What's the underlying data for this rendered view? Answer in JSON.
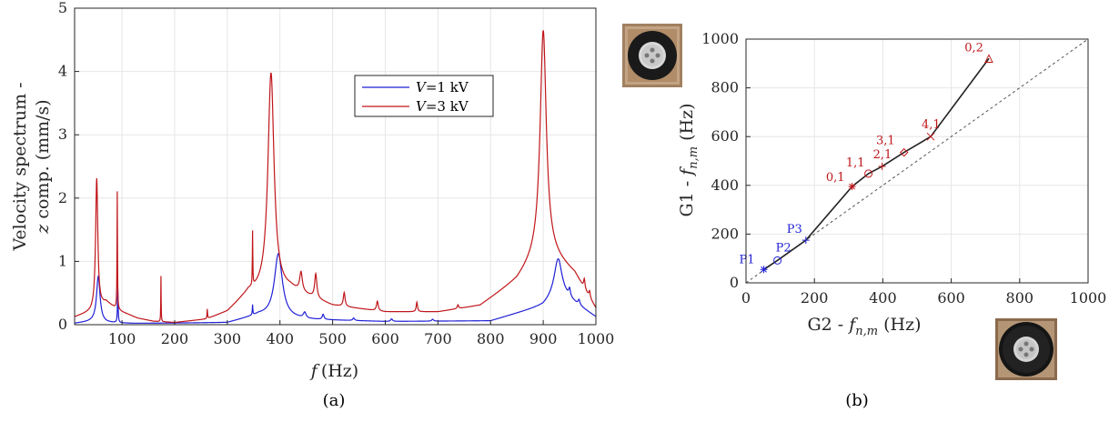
{
  "captions": [
    "(a)",
    "(b)"
  ],
  "chart_data": [
    {
      "type": "line",
      "xlabel_var": "f",
      "xlabel_unit": "(Hz)",
      "ylabel_line1": "Velocity spectrum -",
      "ylabel_var": "z",
      "ylabel_line2_rest": " comp. (mm/s)",
      "xlim": [
        10,
        1000
      ],
      "ylim": [
        0,
        5
      ],
      "xticks": [
        100,
        200,
        300,
        400,
        500,
        600,
        700,
        800,
        900,
        1000
      ],
      "yticks": [
        0,
        1,
        2,
        3,
        4,
        5
      ],
      "grid": true,
      "legend_position": "upper-center",
      "series": [
        {
          "name": "V=1 kV",
          "legend_var": "V",
          "legend_rest": "=1 kV",
          "color": "#1f1fd6",
          "baseline": [
            [
              10,
              0.02
            ],
            [
              45,
              0.05
            ],
            [
              70,
              0.03
            ],
            [
              120,
              0.02
            ],
            [
              300,
              0.03
            ],
            [
              360,
              0.15
            ],
            [
              450,
              0.08
            ],
            [
              600,
              0.05
            ],
            [
              800,
              0.06
            ],
            [
              900,
              0.3
            ],
            [
              930,
              0.5
            ],
            [
              1000,
              0.12
            ]
          ],
          "peaks": [
            {
              "f": 55,
              "a": 0.72,
              "w": 4
            },
            {
              "f": 92,
              "a": 0.55,
              "w": 0.7
            },
            {
              "f": 348,
              "a": 0.16,
              "w": 0.6
            },
            {
              "f": 397,
              "a": 1.0,
              "w": 9
            },
            {
              "f": 447,
              "a": 0.09,
              "w": 3
            },
            {
              "f": 482,
              "a": 0.08,
              "w": 2
            },
            {
              "f": 540,
              "a": 0.04,
              "w": 2
            },
            {
              "f": 612,
              "a": 0.04,
              "w": 2
            },
            {
              "f": 690,
              "a": 0.03,
              "w": 2
            },
            {
              "f": 928,
              "a": 0.55,
              "w": 9
            },
            {
              "f": 950,
              "a": 0.12,
              "w": 2
            },
            {
              "f": 968,
              "a": 0.08,
              "w": 2
            }
          ]
        },
        {
          "name": "V=3 kV",
          "legend_var": "V",
          "legend_rest": "=3 kV",
          "color": "#c0161a",
          "baseline": [
            [
              10,
              0.12
            ],
            [
              40,
              0.2
            ],
            [
              70,
              0.35
            ],
            [
              100,
              0.2
            ],
            [
              130,
              0.1
            ],
            [
              160,
              0.05
            ],
            [
              200,
              0.03
            ],
            [
              260,
              0.08
            ],
            [
              300,
              0.2
            ],
            [
              340,
              0.5
            ],
            [
              420,
              0.55
            ],
            [
              500,
              0.3
            ],
            [
              600,
              0.2
            ],
            [
              700,
              0.2
            ],
            [
              780,
              0.3
            ],
            [
              850,
              0.7
            ],
            [
              900,
              1.2
            ],
            [
              960,
              0.8
            ],
            [
              1000,
              0.25
            ]
          ],
          "peaks": [
            {
              "f": 52,
              "a": 2.05,
              "w": 2.5
            },
            {
              "f": 91,
              "a": 1.85,
              "w": 0.5
            },
            {
              "f": 174,
              "a": 0.72,
              "w": 0.4
            },
            {
              "f": 262,
              "a": 0.15,
              "w": 0.6
            },
            {
              "f": 348,
              "a": 0.85,
              "w": 0.5
            },
            {
              "f": 383,
              "a": 3.45,
              "w": 7
            },
            {
              "f": 440,
              "a": 0.3,
              "w": 3
            },
            {
              "f": 468,
              "a": 0.38,
              "w": 2.5
            },
            {
              "f": 522,
              "a": 0.22,
              "w": 2
            },
            {
              "f": 585,
              "a": 0.15,
              "w": 2
            },
            {
              "f": 660,
              "a": 0.15,
              "w": 1.5
            },
            {
              "f": 738,
              "a": 0.06,
              "w": 1.5
            },
            {
              "f": 900,
              "a": 3.45,
              "w": 7
            },
            {
              "f": 978,
              "a": 0.15,
              "w": 1.5
            },
            {
              "f": 988,
              "a": 0.1,
              "w": 1.5
            }
          ]
        }
      ]
    },
    {
      "type": "scatter",
      "xlabel_pre": "G2 - ",
      "xlabel_var": "f",
      "xlabel_sub": "n,m",
      "xlabel_post": " (Hz)",
      "ylabel_pre": "G1 - ",
      "ylabel_var": "f",
      "ylabel_sub": "n,m",
      "ylabel_post": "  (Hz)",
      "xlim": [
        0,
        1000
      ],
      "ylim": [
        0,
        1000
      ],
      "xticks": [
        0,
        200,
        400,
        600,
        800,
        1000
      ],
      "yticks": [
        0,
        200,
        400,
        600,
        800,
        1000
      ],
      "grid": true,
      "reference_line": "y = x (dotted)",
      "points": [
        {
          "label": "P1",
          "x": 52,
          "y": 55,
          "marker": "star",
          "color": "#1f1fd6"
        },
        {
          "label": "P2",
          "x": 92,
          "y": 92,
          "marker": "circle",
          "color": "#1f1fd6"
        },
        {
          "label": "P3",
          "x": 175,
          "y": 175,
          "marker": "plus",
          "color": "#1f1fd6"
        },
        {
          "label": "0,1",
          "x": 310,
          "y": 395,
          "marker": "star",
          "color": "#c0161a"
        },
        {
          "label": "1,1",
          "x": 358,
          "y": 448,
          "marker": "circle",
          "color": "#c0161a"
        },
        {
          "label": "2,1",
          "x": 398,
          "y": 478,
          "marker": "plus",
          "color": "#c0161a"
        },
        {
          "label": "3,1",
          "x": 462,
          "y": 535,
          "marker": "diamond",
          "color": "#c0161a"
        },
        {
          "label": "4,1",
          "x": 540,
          "y": 600,
          "marker": "cross",
          "color": "#c0161a"
        },
        {
          "label": "0,2",
          "x": 710,
          "y": 920,
          "marker": "triangle",
          "color": "#c0161a"
        }
      ]
    }
  ],
  "photos": [
    "device-photo-g1",
    "device-photo-g2"
  ]
}
